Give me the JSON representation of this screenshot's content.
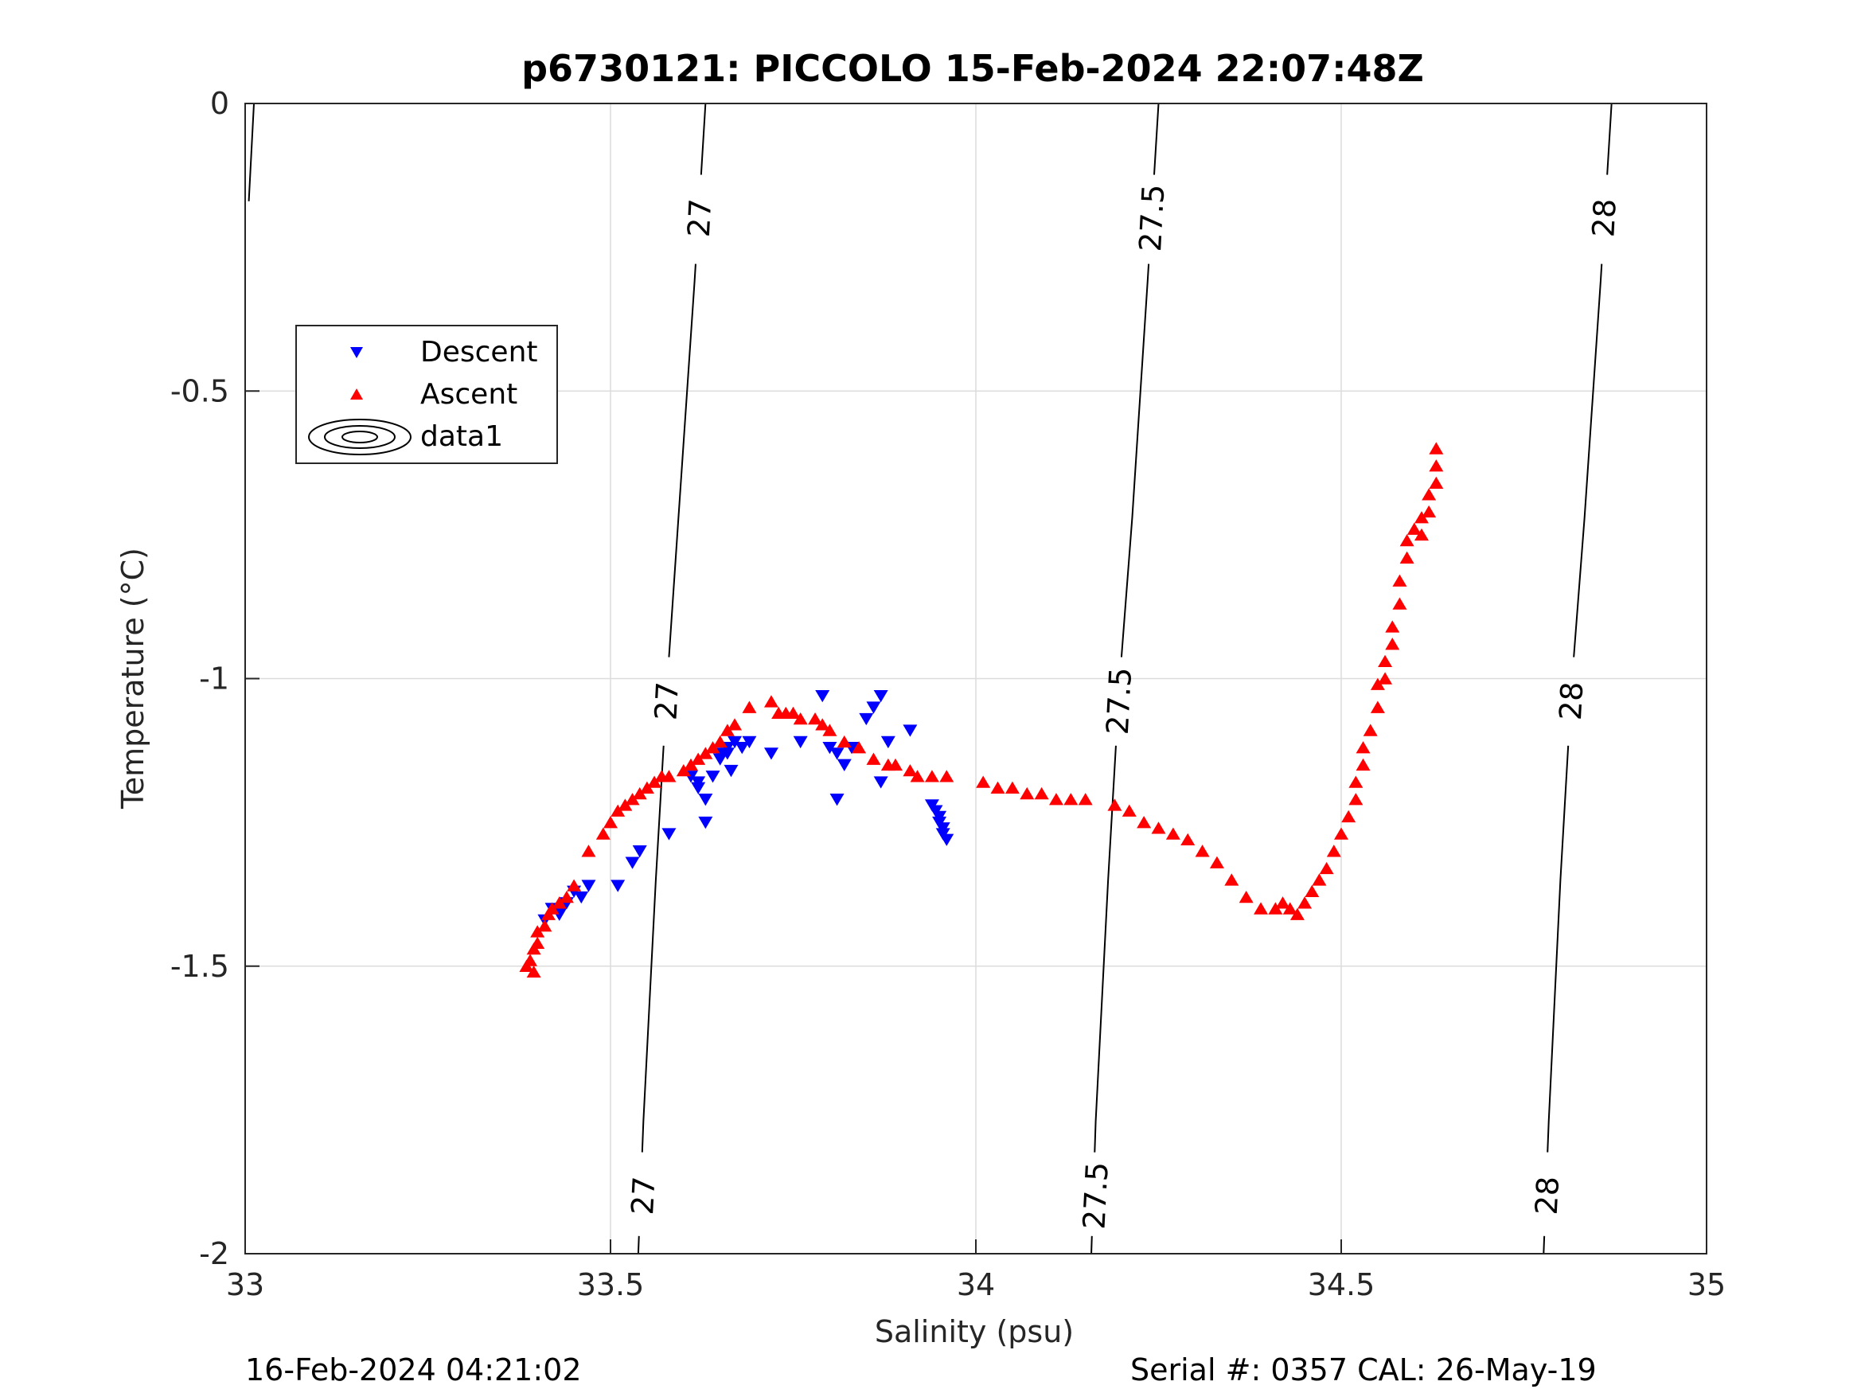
{
  "chart_data": {
    "type": "scatter",
    "title": "p6730121: PICCOLO 15-Feb-2024 22:07:48Z",
    "xlabel": "Salinity (psu)",
    "ylabel": "Temperature (°C)",
    "xlim": [
      33,
      35
    ],
    "ylim": [
      -2,
      0
    ],
    "x_ticks": [
      "33",
      "33.5",
      "34",
      "34.5",
      "35"
    ],
    "y_ticks": [
      "0",
      "-0.5",
      "-1",
      "-1.5",
      "-2"
    ],
    "grid": true,
    "legend": {
      "placement": "upper-left",
      "entries": [
        "Descent",
        "Ascent",
        "data1"
      ]
    },
    "footer_left": "16-Feb-2024 04:21:02",
    "footer_right": "Serial #: 0357  CAL: 26-May-19",
    "colors": {
      "descent": "#0000ff",
      "ascent": "#ff0000",
      "contour": "#000000",
      "grid": "#dcdcdc"
    },
    "density_contours": [
      {
        "level": "27",
        "label_positions": [
          [
            33.622,
            -0.2
          ],
          [
            33.577,
            -1.04
          ],
          [
            33.545,
            -1.9
          ]
        ],
        "points": [
          [
            33.63,
            0
          ],
          [
            33.615,
            -0.31
          ],
          [
            33.593,
            -0.72
          ],
          [
            33.578,
            -1.0
          ],
          [
            33.562,
            -1.35
          ],
          [
            33.545,
            -1.77
          ],
          [
            33.538,
            -2.0
          ]
        ]
      },
      {
        "level": "27.5",
        "label_positions": [
          [
            34.241,
            -0.2
          ],
          [
            34.196,
            -1.04
          ],
          [
            34.164,
            -1.9
          ]
        ],
        "points": [
          [
            34.25,
            0
          ],
          [
            34.235,
            -0.31
          ],
          [
            34.214,
            -0.72
          ],
          [
            34.197,
            -1.0
          ],
          [
            34.181,
            -1.35
          ],
          [
            34.164,
            -1.77
          ],
          [
            34.158,
            -2.0
          ]
        ]
      },
      {
        "level": "28",
        "label_positions": [
          [
            34.86,
            -0.2
          ],
          [
            34.815,
            -1.04
          ],
          [
            34.782,
            -1.9
          ]
        ],
        "points": [
          [
            34.87,
            0
          ],
          [
            34.855,
            -0.31
          ],
          [
            34.833,
            -0.72
          ],
          [
            34.816,
            -1.0
          ],
          [
            34.8,
            -1.35
          ],
          [
            34.784,
            -1.77
          ],
          [
            34.777,
            -2.0
          ]
        ]
      }
    ],
    "series": [
      {
        "name": "Descent",
        "marker": "triangle-down",
        "points": [
          [
            33.41,
            -1.42
          ],
          [
            33.42,
            -1.4
          ],
          [
            33.43,
            -1.41
          ],
          [
            33.44,
            -1.39
          ],
          [
            33.45,
            -1.37
          ],
          [
            33.46,
            -1.38
          ],
          [
            33.47,
            -1.36
          ],
          [
            33.51,
            -1.36
          ],
          [
            33.53,
            -1.32
          ],
          [
            33.54,
            -1.3
          ],
          [
            33.58,
            -1.27
          ],
          [
            33.61,
            -1.17
          ],
          [
            33.62,
            -1.18
          ],
          [
            33.62,
            -1.19
          ],
          [
            33.63,
            -1.21
          ],
          [
            33.63,
            -1.25
          ],
          [
            33.64,
            -1.17
          ],
          [
            33.65,
            -1.13
          ],
          [
            33.65,
            -1.14
          ],
          [
            33.66,
            -1.12
          ],
          [
            33.66,
            -1.13
          ],
          [
            33.67,
            -1.11
          ],
          [
            33.68,
            -1.12
          ],
          [
            33.69,
            -1.11
          ],
          [
            33.665,
            -1.16
          ],
          [
            33.72,
            -1.13
          ],
          [
            33.76,
            -1.11
          ],
          [
            33.79,
            -1.03
          ],
          [
            33.8,
            -1.12
          ],
          [
            33.81,
            -1.13
          ],
          [
            33.81,
            -1.21
          ],
          [
            33.82,
            -1.15
          ],
          [
            33.83,
            -1.12
          ],
          [
            33.85,
            -1.07
          ],
          [
            33.86,
            -1.05
          ],
          [
            33.87,
            -1.03
          ],
          [
            33.87,
            -1.18
          ],
          [
            33.88,
            -1.11
          ],
          [
            33.91,
            -1.09
          ],
          [
            33.94,
            -1.22
          ],
          [
            33.945,
            -1.23
          ],
          [
            33.95,
            -1.24
          ],
          [
            33.95,
            -1.25
          ],
          [
            33.955,
            -1.26
          ],
          [
            33.955,
            -1.27
          ],
          [
            33.96,
            -1.28
          ]
        ]
      },
      {
        "name": "Ascent",
        "marker": "triangle-up",
        "points": [
          [
            33.385,
            -1.5
          ],
          [
            33.39,
            -1.49
          ],
          [
            33.395,
            -1.51
          ],
          [
            33.395,
            -1.47
          ],
          [
            33.4,
            -1.46
          ],
          [
            33.4,
            -1.44
          ],
          [
            33.41,
            -1.43
          ],
          [
            33.415,
            -1.41
          ],
          [
            33.42,
            -1.4
          ],
          [
            33.43,
            -1.39
          ],
          [
            33.44,
            -1.38
          ],
          [
            33.45,
            -1.36
          ],
          [
            33.47,
            -1.3
          ],
          [
            33.49,
            -1.27
          ],
          [
            33.5,
            -1.25
          ],
          [
            33.51,
            -1.23
          ],
          [
            33.52,
            -1.22
          ],
          [
            33.53,
            -1.21
          ],
          [
            33.54,
            -1.2
          ],
          [
            33.55,
            -1.19
          ],
          [
            33.56,
            -1.18
          ],
          [
            33.57,
            -1.17
          ],
          [
            33.58,
            -1.17
          ],
          [
            33.6,
            -1.16
          ],
          [
            33.61,
            -1.15
          ],
          [
            33.62,
            -1.14
          ],
          [
            33.63,
            -1.13
          ],
          [
            33.64,
            -1.12
          ],
          [
            33.65,
            -1.11
          ],
          [
            33.66,
            -1.09
          ],
          [
            33.67,
            -1.08
          ],
          [
            33.69,
            -1.05
          ],
          [
            33.72,
            -1.04
          ],
          [
            33.73,
            -1.06
          ],
          [
            33.74,
            -1.06
          ],
          [
            33.75,
            -1.06
          ],
          [
            33.76,
            -1.07
          ],
          [
            33.78,
            -1.07
          ],
          [
            33.79,
            -1.08
          ],
          [
            33.8,
            -1.09
          ],
          [
            33.82,
            -1.11
          ],
          [
            33.84,
            -1.12
          ],
          [
            33.86,
            -1.14
          ],
          [
            33.88,
            -1.15
          ],
          [
            33.89,
            -1.15
          ],
          [
            33.91,
            -1.16
          ],
          [
            33.92,
            -1.17
          ],
          [
            33.94,
            -1.17
          ],
          [
            33.96,
            -1.17
          ],
          [
            34.01,
            -1.18
          ],
          [
            34.03,
            -1.19
          ],
          [
            34.05,
            -1.19
          ],
          [
            34.07,
            -1.2
          ],
          [
            34.09,
            -1.2
          ],
          [
            34.11,
            -1.21
          ],
          [
            34.13,
            -1.21
          ],
          [
            34.15,
            -1.21
          ],
          [
            34.19,
            -1.22
          ],
          [
            34.21,
            -1.23
          ],
          [
            34.23,
            -1.25
          ],
          [
            34.25,
            -1.26
          ],
          [
            34.27,
            -1.27
          ],
          [
            34.29,
            -1.28
          ],
          [
            34.31,
            -1.3
          ],
          [
            34.33,
            -1.32
          ],
          [
            34.35,
            -1.35
          ],
          [
            34.37,
            -1.38
          ],
          [
            34.39,
            -1.4
          ],
          [
            34.41,
            -1.4
          ],
          [
            34.42,
            -1.39
          ],
          [
            34.43,
            -1.4
          ],
          [
            34.44,
            -1.41
          ],
          [
            34.45,
            -1.39
          ],
          [
            34.46,
            -1.37
          ],
          [
            34.47,
            -1.35
          ],
          [
            34.48,
            -1.33
          ],
          [
            34.49,
            -1.3
          ],
          [
            34.5,
            -1.27
          ],
          [
            34.51,
            -1.24
          ],
          [
            34.52,
            -1.21
          ],
          [
            34.52,
            -1.18
          ],
          [
            34.53,
            -1.15
          ],
          [
            34.53,
            -1.12
          ],
          [
            34.54,
            -1.09
          ],
          [
            34.55,
            -1.05
          ],
          [
            34.55,
            -1.01
          ],
          [
            34.56,
            -1.0
          ],
          [
            34.56,
            -0.97
          ],
          [
            34.57,
            -0.94
          ],
          [
            34.57,
            -0.91
          ],
          [
            34.58,
            -0.87
          ],
          [
            34.58,
            -0.83
          ],
          [
            34.59,
            -0.79
          ],
          [
            34.59,
            -0.76
          ],
          [
            34.6,
            -0.74
          ],
          [
            34.61,
            -0.75
          ],
          [
            34.61,
            -0.72
          ],
          [
            34.62,
            -0.71
          ],
          [
            34.62,
            -0.68
          ],
          [
            34.63,
            -0.66
          ],
          [
            34.63,
            -0.63
          ],
          [
            34.63,
            -0.6
          ]
        ]
      }
    ]
  }
}
